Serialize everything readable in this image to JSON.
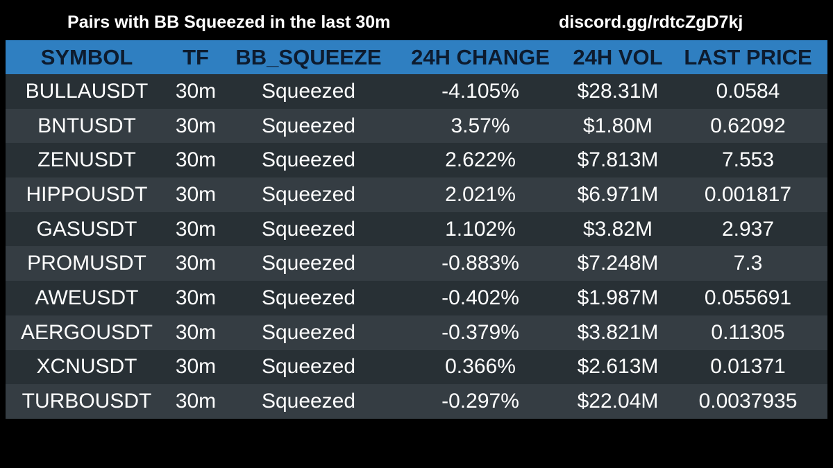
{
  "header": {
    "title": "Pairs with BB Squeezed in the last 30m",
    "discord_link": "discord.gg/rdtcZgD7kj"
  },
  "colors": {
    "background": "#000000",
    "header_row": "#2f7fc1",
    "header_text": "#0d1b2e",
    "row_odd": "#283035",
    "row_even": "#353d43",
    "text": "#ffffff"
  },
  "table": {
    "columns": [
      "SYMBOL",
      "TF",
      "BB_SQUEEZE",
      "24H CHANGE",
      "24H VOL",
      "LAST PRICE"
    ],
    "rows": [
      {
        "symbol": "BULLAUSDT",
        "tf": "30m",
        "bb_squeeze": "Squeezed",
        "change": "-4.105%",
        "vol": "$28.31M",
        "price": "0.0584"
      },
      {
        "symbol": "BNTUSDT",
        "tf": "30m",
        "bb_squeeze": "Squeezed",
        "change": "3.57%",
        "vol": "$1.80M",
        "price": "0.62092"
      },
      {
        "symbol": "ZENUSDT",
        "tf": "30m",
        "bb_squeeze": "Squeezed",
        "change": "2.622%",
        "vol": "$7.813M",
        "price": "7.553"
      },
      {
        "symbol": "HIPPOUSDT",
        "tf": "30m",
        "bb_squeeze": "Squeezed",
        "change": "2.021%",
        "vol": "$6.971M",
        "price": "0.001817"
      },
      {
        "symbol": "GASUSDT",
        "tf": "30m",
        "bb_squeeze": "Squeezed",
        "change": "1.102%",
        "vol": "$3.82M",
        "price": "2.937"
      },
      {
        "symbol": "PROMUSDT",
        "tf": "30m",
        "bb_squeeze": "Squeezed",
        "change": "-0.883%",
        "vol": "$7.248M",
        "price": "7.3"
      },
      {
        "symbol": "AWEUSDT",
        "tf": "30m",
        "bb_squeeze": "Squeezed",
        "change": "-0.402%",
        "vol": "$1.987M",
        "price": "0.055691"
      },
      {
        "symbol": "AERGOUSDT",
        "tf": "30m",
        "bb_squeeze": "Squeezed",
        "change": "-0.379%",
        "vol": "$3.821M",
        "price": "0.11305"
      },
      {
        "symbol": "XCNUSDT",
        "tf": "30m",
        "bb_squeeze": "Squeezed",
        "change": "0.366%",
        "vol": "$2.613M",
        "price": "0.01371"
      },
      {
        "symbol": "TURBOUSDT",
        "tf": "30m",
        "bb_squeeze": "Squeezed",
        "change": "-0.297%",
        "vol": "$22.04M",
        "price": "0.0037935"
      }
    ]
  }
}
